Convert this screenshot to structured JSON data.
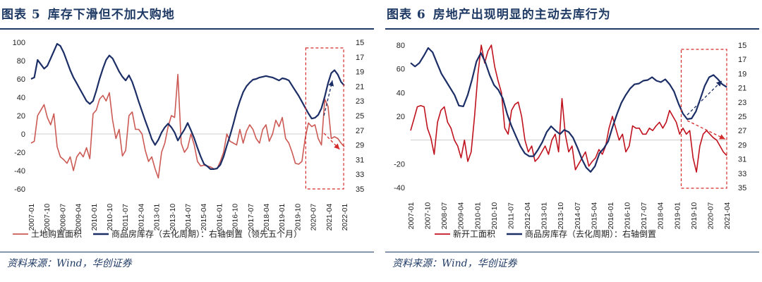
{
  "charts": [
    {
      "figure_label": "图表 5",
      "title": "库存下滑但不加大购地",
      "source": "资料来源：Wind，华创证券",
      "chart_data": {
        "type": "line",
        "x_tick_labels": [
          "2007-01",
          "2007-10",
          "2008-07",
          "2009-04",
          "2010-01",
          "2010-10",
          "2011-07",
          "2012-04",
          "2013-01",
          "2013-10",
          "2014-07",
          "2015-04",
          "2016-01",
          "2016-10",
          "2017-07",
          "2018-04",
          "2019-01",
          "2019-10",
          "2020-07",
          "2021-04",
          "2022-01"
        ],
        "y_left": {
          "min": -60,
          "max": 100,
          "ticks": [
            "100",
            "80",
            "60",
            "40",
            "20",
            "0",
            "-20",
            "-40",
            "-60"
          ]
        },
        "y_right": {
          "min": 15,
          "max": 35,
          "inverted": true,
          "ticks": [
            "15",
            "17",
            "19",
            "21",
            "23",
            "25",
            "27",
            "29",
            "31",
            "33",
            "35"
          ]
        },
        "series": [
          {
            "name": "土地购置面积",
            "axis": "left",
            "color": "#cc5a54",
            "values": [
              -10,
              -8,
              20,
              26,
              32,
              18,
              10,
              22,
              -14,
              -25,
              -28,
              -32,
              -25,
              -40,
              -25,
              -20,
              -25,
              -15,
              -27,
              22,
              26,
              38,
              42,
              36,
              45,
              15,
              -5,
              5,
              -24,
              -18,
              20,
              24,
              5,
              5,
              0,
              -18,
              -30,
              -25,
              -38,
              -48,
              -20,
              -10,
              8,
              20,
              18,
              65,
              -10,
              -20,
              -15,
              0,
              -12,
              -30,
              -35,
              -34,
              -35,
              -36,
              -38,
              -38,
              -30,
              -20,
              0,
              -8,
              -10,
              -12,
              5,
              -10,
              3,
              10,
              5,
              -5,
              -10,
              5,
              10,
              -8,
              0,
              15,
              8,
              18,
              -5,
              -10,
              -20,
              -32,
              -33,
              -30,
              -5,
              12,
              8,
              10,
              -5,
              -12,
              38,
              30,
              -5,
              -3,
              -5,
              -10,
              -14
            ]
          },
          {
            "name": "商品房库存（去化周期）：右轴倒置（领先五个月）",
            "axis": "right",
            "color": "#1c2e66",
            "values": [
              20.0,
              19.8,
              17.4,
              18.0,
              18.6,
              18.2,
              17.2,
              16.2,
              15.2,
              15.5,
              16.4,
              17.6,
              18.8,
              19.8,
              20.6,
              21.4,
              22.2,
              23.0,
              23.4,
              23.0,
              21.6,
              20.0,
              18.6,
              17.4,
              16.8,
              17.2,
              18.1,
              19.0,
              19.7,
              20.2,
              19.5,
              20.4,
              21.7,
              23.1,
              24.4,
              25.7,
              26.9,
              28.2,
              29.0,
              28.3,
              27.3,
              26.6,
              26.1,
              26.6,
              27.3,
              28.4,
              27.6,
              26.9,
              26.0,
              27.0,
              28.1,
              29.4,
              30.6,
              31.6,
              31.9,
              32.3,
              32.3,
              32.2,
              31.7,
              30.6,
              29.1,
              27.7,
              26.1,
              24.4,
              23.0,
              21.8,
              21.0,
              20.5,
              20.1,
              20.0,
              19.8,
              19.7,
              19.6,
              19.7,
              19.8,
              20.0,
              20.2,
              19.9,
              20.0,
              20.2,
              20.9,
              21.6,
              22.3,
              23.1,
              23.9,
              24.7,
              25.4,
              25.3,
              24.9,
              24.0,
              22.4,
              20.6,
              19.2,
              18.8,
              19.4,
              20.4,
              20.9
            ]
          }
        ],
        "legend": [
          "土地购置面积",
          "商品房库存（去化周期）：右轴倒置（领先五个月）"
        ],
        "legend_placement": "bottom",
        "annotations": [
          "dashed highlight box 2020-07 to 2022-01",
          "dashed up arrow",
          "dashed down arrow"
        ]
      }
    },
    {
      "figure_label": "图表 6",
      "title": "房地产出现明显的主动去库行为",
      "source": "资料来源：Wind，华创证券",
      "chart_data": {
        "type": "line",
        "x_tick_labels": [
          "2007-01",
          "2007-10",
          "2008-07",
          "2009-04",
          "2010-01",
          "2010-10",
          "2011-07",
          "2012-04",
          "2013-01",
          "2013-10",
          "2014-07",
          "2015-04",
          "2016-01",
          "2016-10",
          "2017-07",
          "2018-04",
          "2019-01",
          "2019-10",
          "2020-07",
          "2021-04"
        ],
        "y_left": {
          "min": -40,
          "max": 80,
          "ticks": [
            "80",
            "60",
            "40",
            "20",
            "",
            "-20",
            "-40"
          ]
        },
        "y_right": {
          "min": 15,
          "max": 35,
          "inverted": true,
          "ticks": [
            "15",
            "17",
            "19",
            "21",
            "23",
            "25",
            "27",
            "29",
            "31",
            "33",
            "35"
          ]
        },
        "series": [
          {
            "name": "新开工面积",
            "axis": "left",
            "color": "#c0121e",
            "values": [
              8,
              18,
              28,
              29,
              28,
              10,
              2,
              -12,
              15,
              25,
              28,
              15,
              10,
              0,
              -5,
              -15,
              0,
              -18,
              -10,
              20,
              55,
              80,
              65,
              75,
              80,
              62,
              50,
              40,
              10,
              5,
              25,
              30,
              32,
              20,
              0,
              -10,
              -5,
              -18,
              -15,
              -10,
              -5,
              -12,
              0,
              5,
              -10,
              35,
              5,
              -10,
              -5,
              -25,
              -20,
              -15,
              -10,
              -22,
              -18,
              -15,
              -8,
              -12,
              -5,
              10,
              20,
              10,
              0,
              5,
              -10,
              -5,
              12,
              10,
              10,
              5,
              5,
              10,
              8,
              12,
              15,
              10,
              15,
              25,
              20,
              15,
              5,
              10,
              5,
              8,
              -15,
              -27,
              -5,
              5,
              8,
              5,
              2,
              0,
              -5,
              -10,
              -13
            ]
          },
          {
            "name": "商品房库存（去化周期）：右轴倒置（领先五个月）",
            "axis": "right",
            "color": "#1c2e66",
            "values": [
              17.5,
              18.0,
              17.5,
              16.5,
              15.4,
              16.0,
              17.5,
              19.0,
              20.0,
              21.0,
              22.0,
              23.5,
              23.6,
              22.0,
              19.8,
              17.3,
              16.1,
              17.4,
              19.2,
              20.6,
              21.3,
              22.5,
              24.7,
              26.4,
              27.8,
              29.2,
              30.2,
              30.6,
              30.6,
              29.7,
              28.6,
              27.2,
              26.4,
              27.0,
              27.5,
              26.9,
              27.2,
              28.0,
              29.4,
              31.0,
              32.2,
              32.8,
              32.0,
              30.2,
              29.5,
              28.5,
              26.5,
              24.7,
              23.1,
              22.0,
              21.1,
              20.5,
              20.4,
              20.0,
              19.9,
              19.5,
              20.0,
              20.2,
              19.8,
              20.5,
              21.5,
              23.2,
              24.6,
              25.4,
              25.3,
              24.3,
              22.5,
              20.7,
              19.5,
              19.2,
              19.8,
              20.5,
              20.9
            ]
          }
        ],
        "legend": [
          "新开工面积",
          "商品房库存（去化周期）：右轴倒置（领先五个月）"
        ],
        "legend_labels_display": [
          "新开工面积",
          "商品房库存（去化周期）：右轴倒置"
        ],
        "legend_placement": "bottom",
        "annotations": [
          "dashed highlight box 2019-10 to 2021-04",
          "dashed up arrow",
          "dashed down arrow"
        ]
      }
    }
  ]
}
